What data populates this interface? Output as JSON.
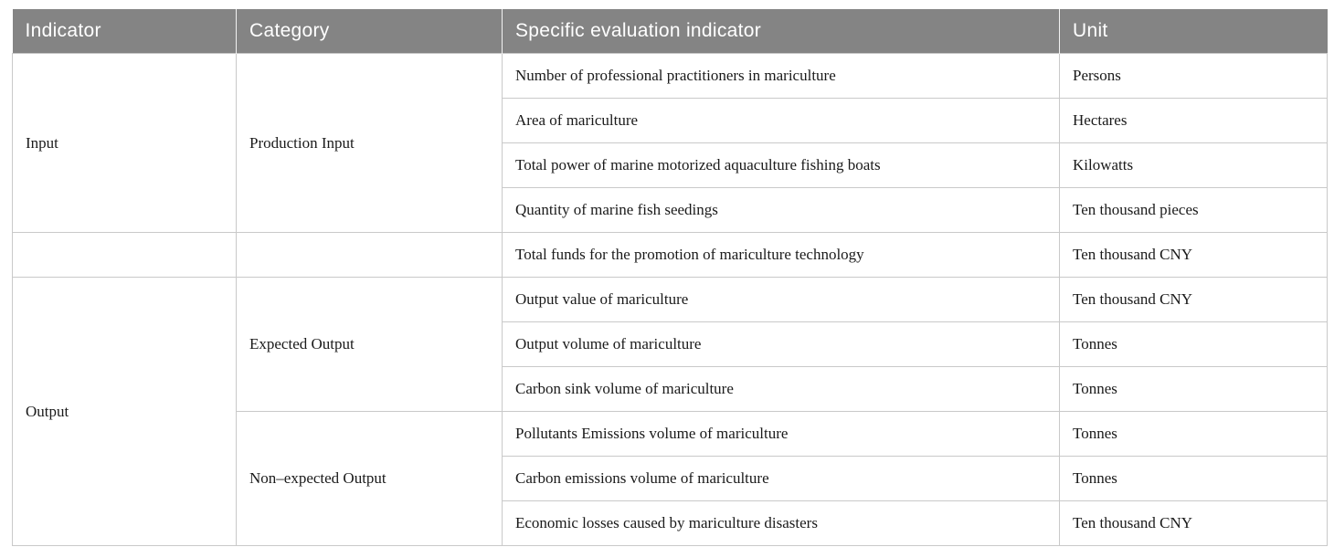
{
  "table": {
    "header": {
      "indicator": "Indicator",
      "category": "Category",
      "specific": "Specific evaluation indicator",
      "unit": "Unit"
    },
    "indicator_groups": {
      "input": "Input",
      "output": "Output"
    },
    "category_groups": {
      "production_input": "Production Input",
      "expected_output": "Expected Output",
      "non_expected_output": "Non–expected Output"
    },
    "rows": [
      {
        "specific": "Number of professional practitioners in mariculture",
        "unit": "Persons"
      },
      {
        "specific": "Area of mariculture",
        "unit": "Hectares"
      },
      {
        "specific": "Total power of marine motorized aquaculture fishing boats",
        "unit": "Kilowatts"
      },
      {
        "specific": "Quantity of marine fish seedings",
        "unit": "Ten thousand pieces"
      },
      {
        "specific": "Total funds for the promotion of mariculture technology",
        "unit": "Ten thousand CNY"
      },
      {
        "specific": "Output value of mariculture",
        "unit": "Ten thousand CNY"
      },
      {
        "specific": "Output volume of mariculture",
        "unit": "Tonnes"
      },
      {
        "specific": "Carbon sink volume of mariculture",
        "unit": "Tonnes"
      },
      {
        "specific": "Pollutants Emissions volume of mariculture",
        "unit": "Tonnes"
      },
      {
        "specific": "Carbon emissions volume of mariculture",
        "unit": "Tonnes"
      },
      {
        "specific": "Economic losses caused by mariculture disasters",
        "unit": "Ten thousand CNY"
      }
    ],
    "colors": {
      "header_bg": "#848484",
      "header_text": "#ffffff",
      "border": "#c9c9c9",
      "body_text": "#1a1a1a"
    }
  }
}
